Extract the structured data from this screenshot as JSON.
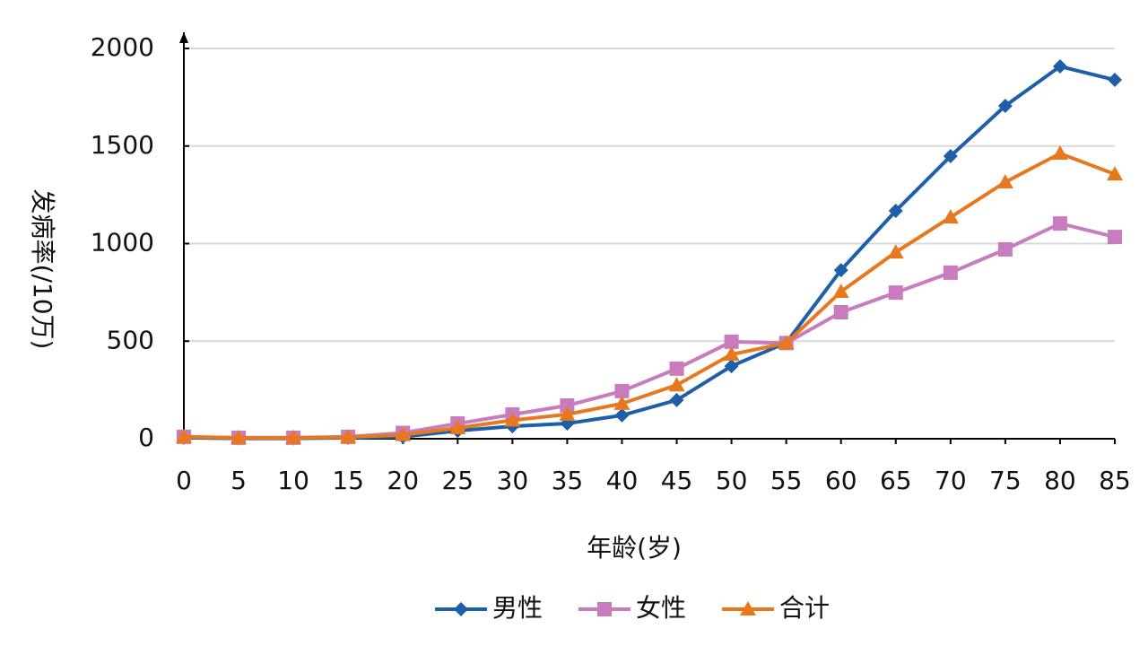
{
  "chart_data": {
    "type": "line",
    "xlabel": "年龄(岁)",
    "ylabel": "发病率(/10万)",
    "x": [
      0,
      5,
      10,
      15,
      20,
      25,
      30,
      35,
      40,
      45,
      50,
      55,
      60,
      65,
      70,
      75,
      80,
      85
    ],
    "xlim": [
      0,
      85
    ],
    "xticks": [
      0,
      5,
      10,
      15,
      20,
      25,
      30,
      35,
      40,
      45,
      50,
      55,
      60,
      65,
      70,
      75,
      80,
      85
    ],
    "ylim": [
      0,
      2000
    ],
    "yticks": [
      0,
      500,
      1000,
      1500,
      2000
    ],
    "grid": true,
    "legend": "bottom",
    "series": [
      {
        "name": "男性",
        "color": "#1f5fa8",
        "marker": "diamond",
        "values": [
          5,
          2,
          2,
          5,
          10,
          41,
          64,
          78,
          120,
          198,
          372,
          492,
          864,
          1168,
          1448,
          1706,
          1908,
          1839
        ]
      },
      {
        "name": "女性",
        "color": "#c87bbd",
        "marker": "square",
        "values": [
          10,
          5,
          5,
          10,
          30,
          78,
          124,
          170,
          244,
          359,
          497,
          490,
          648,
          749,
          851,
          970,
          1103,
          1034
        ]
      },
      {
        "name": "合计",
        "color": "#e8781e",
        "marker": "triangle",
        "values": [
          10,
          5,
          5,
          8,
          20,
          55,
          95,
          125,
          180,
          275,
          432,
          490,
          754,
          956,
          1135,
          1315,
          1462,
          1356
        ]
      }
    ]
  }
}
